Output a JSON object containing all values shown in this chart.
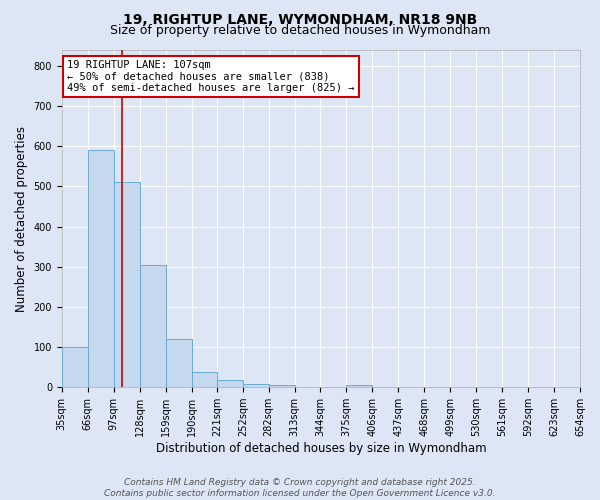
{
  "title_line1": "19, RIGHTUP LANE, WYMONDHAM, NR18 9NB",
  "title_line2": "Size of property relative to detached houses in Wymondham",
  "xlabel": "Distribution of detached houses by size in Wymondham",
  "ylabel": "Number of detached properties",
  "bin_edges": [
    35,
    66,
    97,
    128,
    159,
    190,
    221,
    252,
    282,
    313,
    344,
    375,
    406,
    437,
    468,
    499,
    530,
    561,
    592,
    623,
    654
  ],
  "bar_heights": [
    100,
    590,
    510,
    305,
    120,
    38,
    18,
    8,
    5,
    0,
    0,
    5,
    0,
    0,
    0,
    0,
    0,
    0,
    0,
    0
  ],
  "bar_color": "#c5d8ee",
  "bar_edge_color": "#6aaad4",
  "red_line_x": 107,
  "red_line_color": "#cc0000",
  "ylim": [
    0,
    840
  ],
  "yticks": [
    0,
    100,
    200,
    300,
    400,
    500,
    600,
    700,
    800
  ],
  "annotation_text": "19 RIGHTUP LANE: 107sqm\n← 50% of detached houses are smaller (838)\n49% of semi-detached houses are larger (825) →",
  "annotation_box_color": "#ffffff",
  "annotation_border_color": "#cc0000",
  "footer_line1": "Contains HM Land Registry data © Crown copyright and database right 2025.",
  "footer_line2": "Contains public sector information licensed under the Open Government Licence v3.0.",
  "background_color": "#dce6f5",
  "plot_background_color": "#dce6f5",
  "grid_color": "#ffffff",
  "title_fontsize": 10,
  "subtitle_fontsize": 9,
  "label_fontsize": 8.5,
  "tick_fontsize": 7,
  "footer_fontsize": 6.5,
  "annotation_fontsize": 7.5
}
